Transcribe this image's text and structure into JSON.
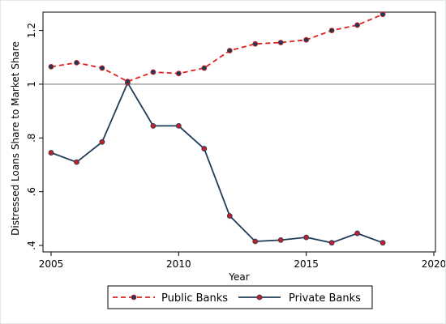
{
  "chart_data": {
    "type": "line",
    "xlabel": "Year",
    "ylabel": "Distressed Loans Share to Market Share",
    "xlim": [
      2005,
      2020
    ],
    "ylim": [
      0.4,
      1.25
    ],
    "x_ticks": [
      2005,
      2010,
      2015,
      2020
    ],
    "x_tick_labels": [
      "2005",
      "2010",
      "2015",
      "2020"
    ],
    "y_ticks": [
      0.4,
      0.6,
      0.8,
      1.0,
      1.2
    ],
    "y_tick_labels": [
      ".4",
      ".6",
      ".8",
      "1",
      "1.2"
    ],
    "reference_line": 1.0,
    "grid": false,
    "legend_position": "bottom",
    "x": [
      2005,
      2006,
      2007,
      2008,
      2009,
      2010,
      2011,
      2012,
      2013,
      2014,
      2015,
      2016,
      2017,
      2018
    ],
    "series": [
      {
        "name": "Public Banks",
        "line_color": "#e0201e",
        "marker_color": "#1f3b57",
        "dashed": true,
        "values": [
          1.065,
          1.08,
          1.06,
          1.01,
          1.045,
          1.04,
          1.06,
          1.125,
          1.15,
          1.155,
          1.165,
          1.2,
          1.22,
          1.26
        ]
      },
      {
        "name": "Private Banks",
        "line_color": "#1f3b57",
        "marker_color": "#c41e2a",
        "dashed": false,
        "values": [
          0.745,
          0.71,
          0.785,
          1.005,
          0.845,
          0.845,
          0.76,
          0.51,
          0.415,
          0.42,
          0.43,
          0.41,
          0.445,
          0.41
        ]
      }
    ]
  },
  "colors": {
    "reference_line": "#808080",
    "axis": "#000000"
  }
}
